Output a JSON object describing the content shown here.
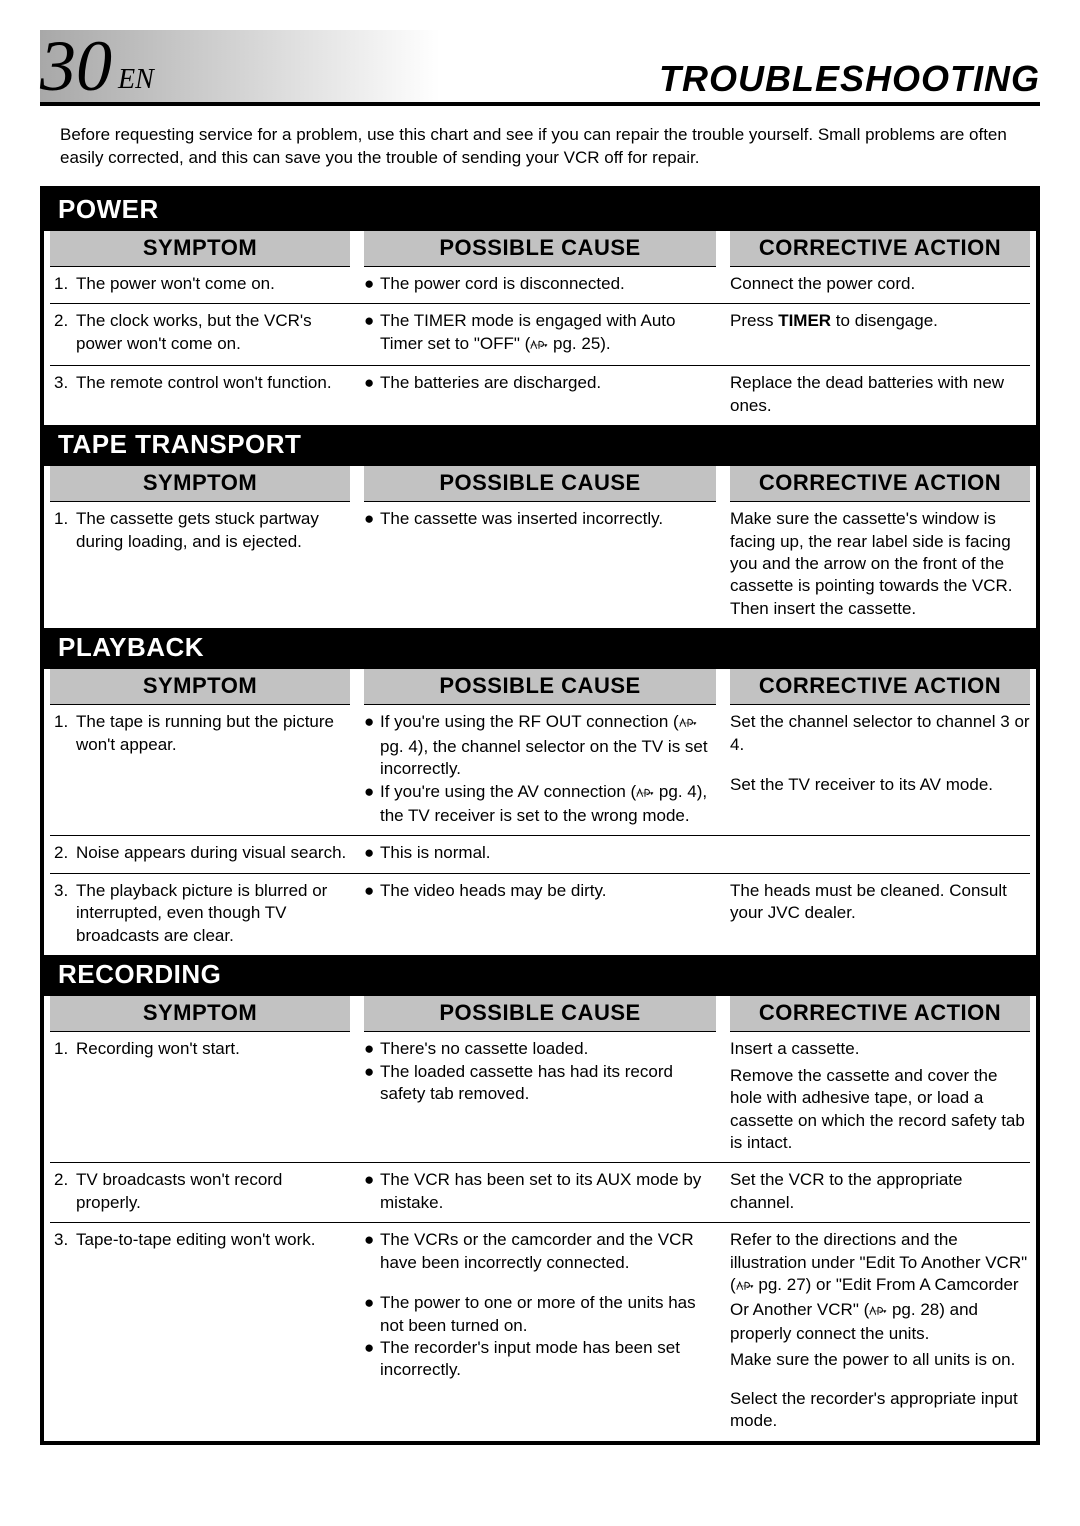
{
  "page_number": "30",
  "lang_code": "EN",
  "title": "TROUBLESHOOTING",
  "intro": "Before requesting service for a problem, use this chart and see if you can repair the trouble yourself. Small problems are often easily corrected, and this can save you the trouble of sending your VCR off for repair.",
  "columns": {
    "symptom": "SYMPTOM",
    "cause": "POSSIBLE CAUSE",
    "action": "CORRECTIVE ACTION"
  },
  "sections": [
    {
      "name": "POWER",
      "rows": [
        {
          "num": "1.",
          "symptom": "The power won't come on.",
          "causes": [
            {
              "text": "The power cord is disconnected."
            }
          ],
          "actions": [
            "Connect the power cord."
          ]
        },
        {
          "num": "2.",
          "symptom": "The clock works, but the VCR's power won't come on.",
          "causes": [
            {
              "text_parts": [
                "The TIMER mode is engaged with Auto Timer set to \"OFF\" (",
                " pg. 25)."
              ],
              "has_ref": true
            }
          ],
          "actions_rich": [
            {
              "parts": [
                "Press ",
                {
                  "bold": "TIMER"
                },
                " to disengage."
              ]
            }
          ]
        },
        {
          "num": "3.",
          "symptom": "The remote control won't function.",
          "causes": [
            {
              "text": "The batteries are discharged."
            }
          ],
          "actions": [
            "Replace the dead batteries with new ones."
          ]
        }
      ]
    },
    {
      "name": "TAPE TRANSPORT",
      "rows": [
        {
          "num": "1.",
          "symptom": "The cassette gets stuck partway during loading, and is ejected.",
          "causes": [
            {
              "text": "The cassette was inserted incorrectly."
            }
          ],
          "actions": [
            "Make sure the cassette's window is facing up, the rear label side is facing you and the arrow on the front of the cassette is pointing towards the VCR. Then insert the cassette."
          ]
        }
      ]
    },
    {
      "name": "PLAYBACK",
      "rows": [
        {
          "num": "1.",
          "symptom": "The tape is running but the picture won't appear.",
          "causes": [
            {
              "text_parts": [
                "If you're using the RF OUT connection (",
                " pg. 4), the channel selector on the TV is set incorrectly."
              ],
              "has_ref": true
            },
            {
              "text_parts": [
                "If you're using the AV connection (",
                " pg. 4), the TV receiver is set to the wrong mode."
              ],
              "has_ref": true
            }
          ],
          "actions": [
            "Set the channel selector to channel 3 or 4.",
            "Set the TV receiver to its AV mode."
          ],
          "action_spaced": true
        },
        {
          "num": "2.",
          "symptom": "Noise appears during visual search.",
          "causes": [
            {
              "text": "This is normal."
            }
          ],
          "actions": []
        },
        {
          "num": "3.",
          "symptom": "The playback picture is blurred or interrupted, even though TV broadcasts are clear.",
          "causes": [
            {
              "text": "The video heads may be dirty."
            }
          ],
          "actions": [
            "The heads must be cleaned. Consult your JVC dealer."
          ]
        }
      ]
    },
    {
      "name": "RECORDING",
      "rows": [
        {
          "num": "1.",
          "symptom": "Recording won't start.",
          "causes": [
            {
              "text": "There's no cassette loaded."
            },
            {
              "text": "The loaded cassette has had its record safety tab removed."
            }
          ],
          "actions": [
            "Insert a cassette.",
            "Remove the cassette and cover the hole with adhesive tape, or load a cassette on which the record safety tab is intact."
          ]
        },
        {
          "num": "2.",
          "symptom": "TV broadcasts won't record properly.",
          "causes": [
            {
              "text": "The VCR has been set to its AUX mode by mistake."
            }
          ],
          "actions": [
            "Set the VCR to the appropriate channel."
          ]
        },
        {
          "num": "3.",
          "symptom": "Tape-to-tape editing won't work.",
          "causes": [
            {
              "text": "The VCRs or the camcorder and the VCR have been incorrectly connected."
            },
            {
              "text": "The power to one or more of the units has not been turned on.",
              "gap_before": true
            },
            {
              "text": "The recorder's input mode has been set incorrectly."
            }
          ],
          "actions_rich": [
            {
              "parts": [
                "Refer to the directions and the illustration under \"Edit To Another VCR\" (",
                {
                  "ref": true
                },
                " pg. 27) or \"Edit From A Camcorder Or Another VCR\" (",
                {
                  "ref": true
                },
                " pg. 28) and properly connect the units."
              ]
            },
            {
              "parts": [
                "Make sure the power to all units is on."
              ]
            },
            {
              "parts": [
                "Select the recorder's appropriate input mode."
              ],
              "gap_before": true
            }
          ]
        }
      ]
    }
  ]
}
